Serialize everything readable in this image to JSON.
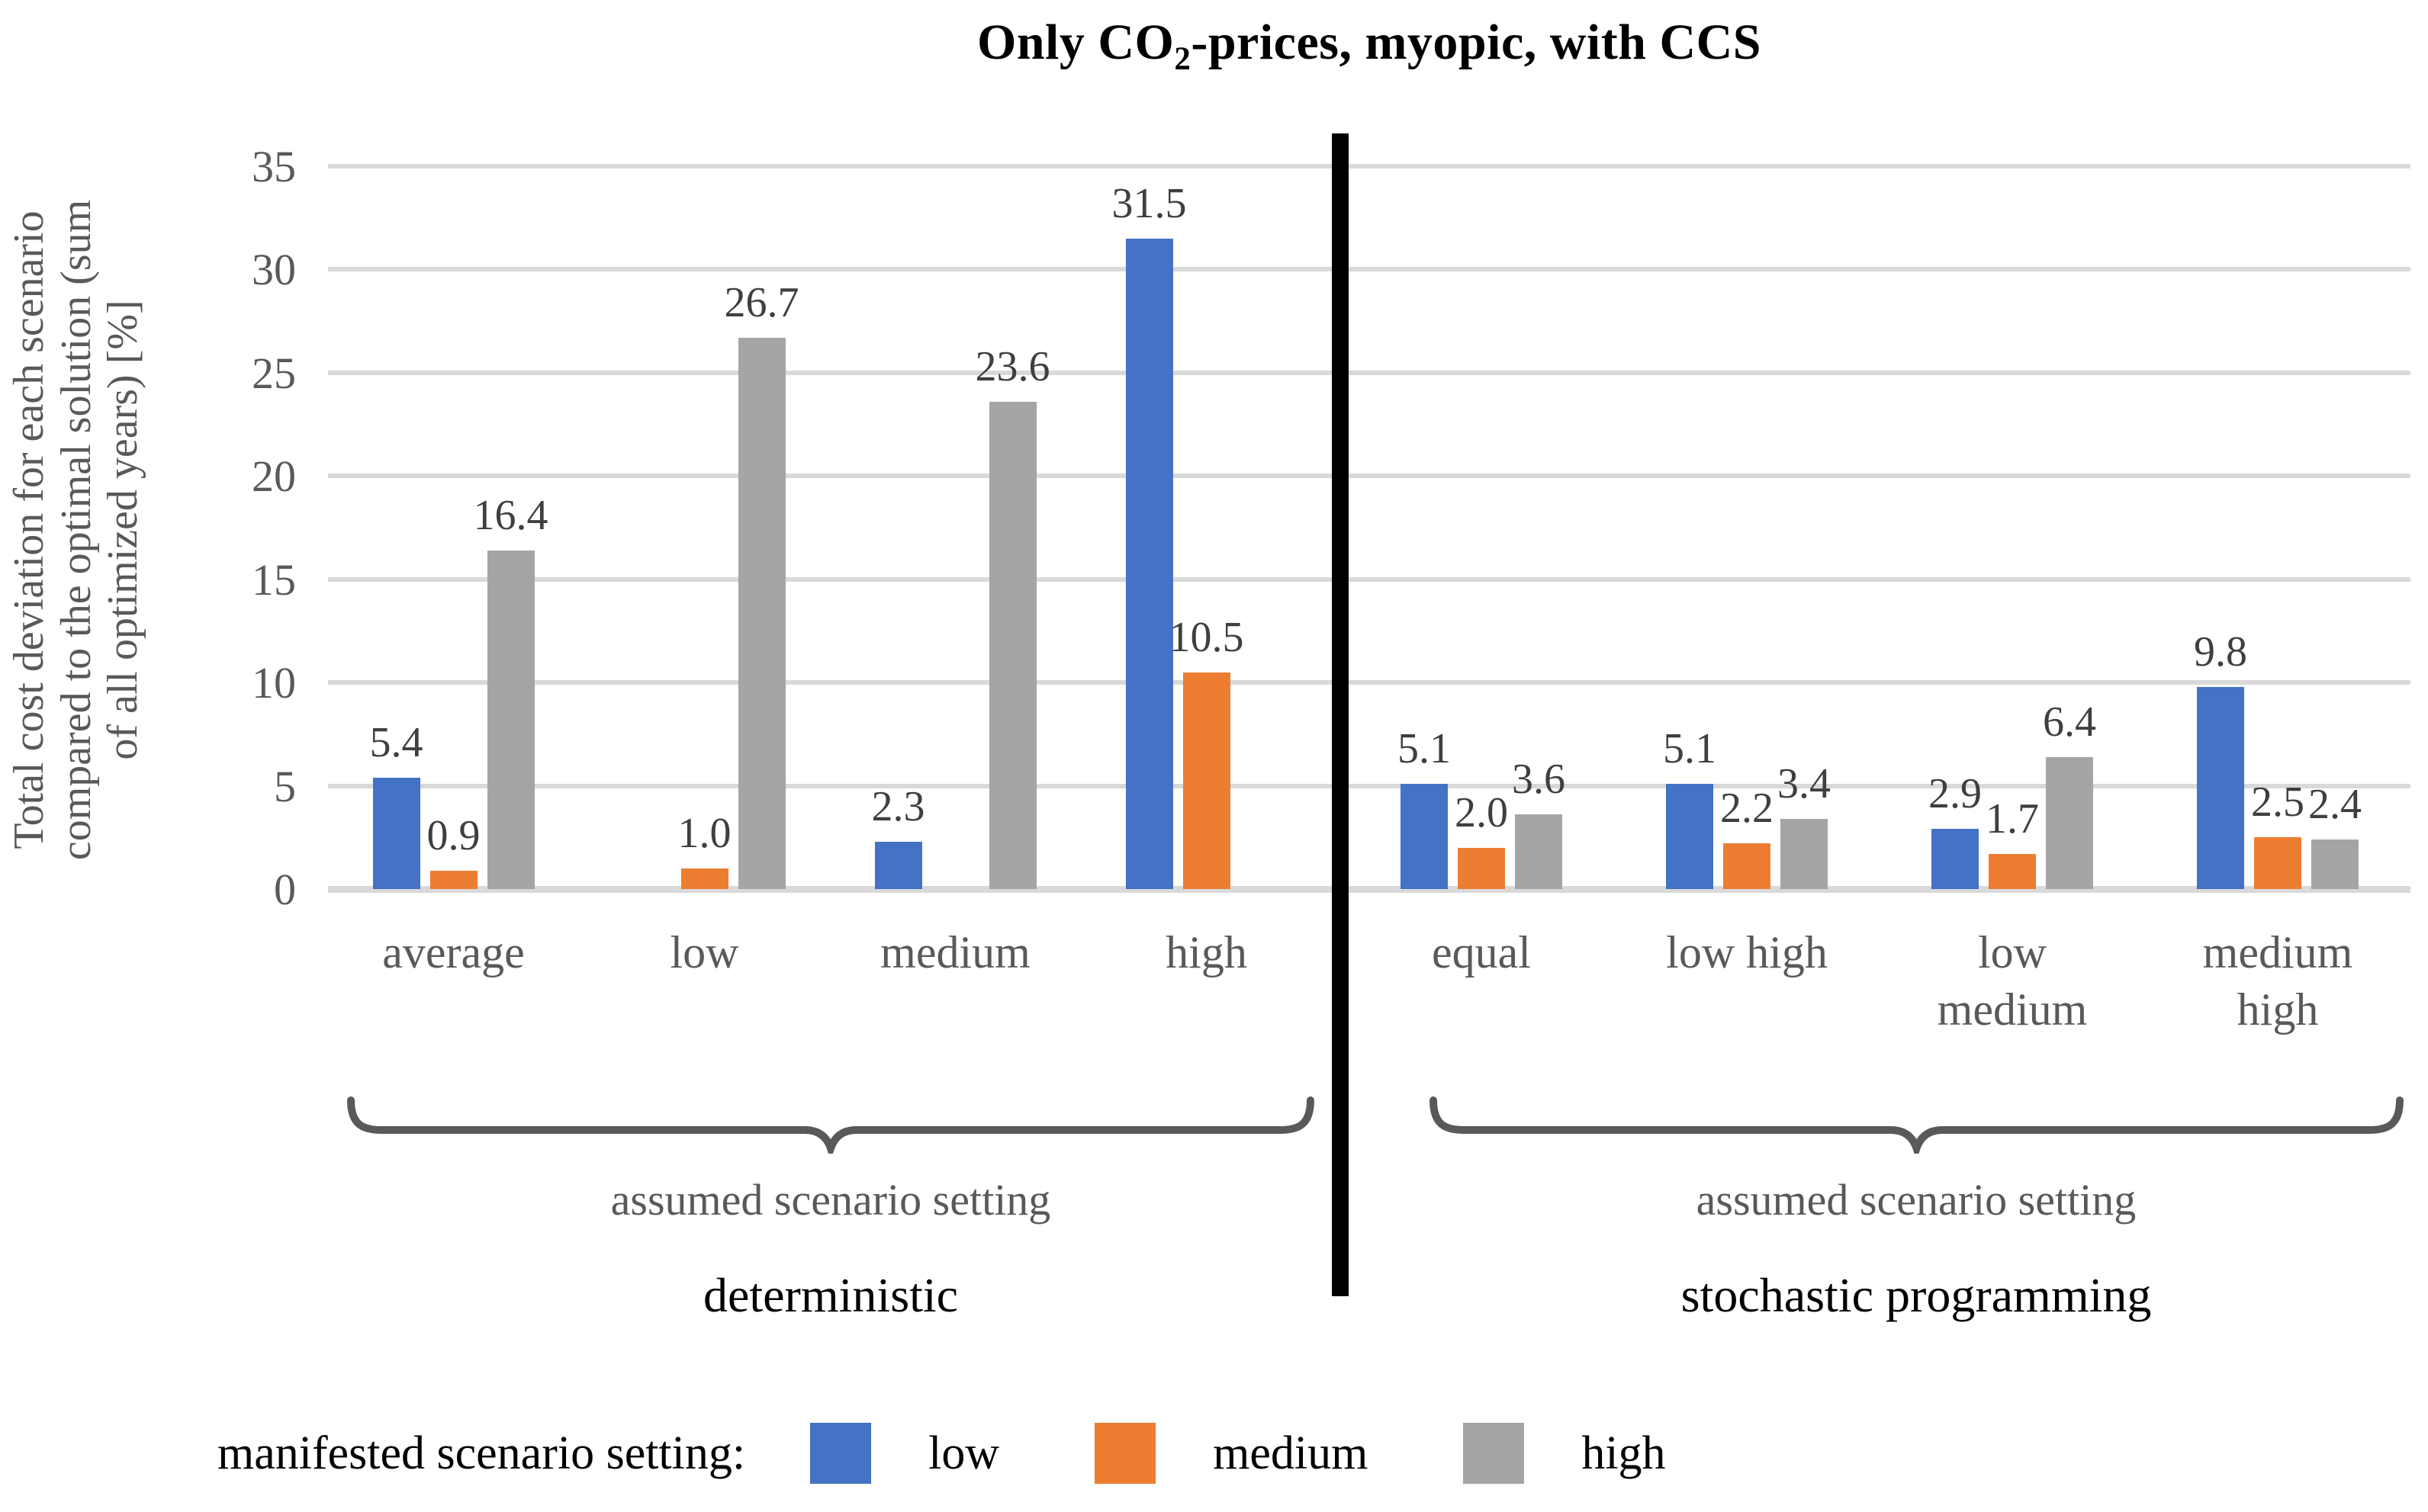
{
  "title": {
    "pre": "Only CO",
    "sub": "2",
    "post": "-prices, myopic, with CCS"
  },
  "y_axis": {
    "label_text": "Total cost deviation for each scenario\ncompared to the optimal solution (sum\nof all optimized years) [%]",
    "ticks": [
      "0",
      "5",
      "10",
      "15",
      "20",
      "25",
      "30",
      "35"
    ]
  },
  "legend": {
    "title": "manifested scenario setting:",
    "items": [
      {
        "label": "low",
        "color": "#4472C4"
      },
      {
        "label": "medium",
        "color": "#ED7D31"
      },
      {
        "label": "high",
        "color": "#A5A5A5"
      }
    ]
  },
  "sections": [
    {
      "name": "deterministic",
      "bracket_label": "assumed scenario setting"
    },
    {
      "name": "stochastic programming",
      "bracket_label": "assumed scenario setting"
    }
  ],
  "colors": {
    "grid": "#D9D9D9",
    "axis_text": "#595959",
    "data_label": "#3F3F3F",
    "divider": "#000000",
    "bracket": "#595959"
  },
  "chart_data": {
    "type": "bar",
    "title": "Only CO2-prices, myopic, with CCS",
    "ylabel": "Total cost deviation for each scenario compared to the optimal solution (sum of all optimized years) [%]",
    "xlabel": "",
    "ylim": [
      0,
      35
    ],
    "yticks": [
      0,
      5,
      10,
      15,
      20,
      25,
      30,
      35
    ],
    "grid": true,
    "legend_position": "bottom",
    "legend_title": "manifested scenario setting:",
    "categories": [
      "average",
      "low",
      "medium",
      "high",
      "equal",
      "low high",
      "low\nmedium",
      "medium\nhigh"
    ],
    "category_sections": [
      "deterministic",
      "deterministic",
      "deterministic",
      "deterministic",
      "stochastic programming",
      "stochastic programming",
      "stochastic programming",
      "stochastic programming"
    ],
    "section_bracket_labels": [
      "assumed scenario setting",
      "assumed scenario setting"
    ],
    "bar_value_labels_shown": true,
    "series": [
      {
        "name": "low",
        "color": "#4472C4",
        "values": [
          5.4,
          null,
          2.3,
          31.5,
          5.1,
          5.1,
          2.9,
          9.8
        ]
      },
      {
        "name": "medium",
        "color": "#ED7D31",
        "values": [
          0.9,
          1.0,
          null,
          10.5,
          2.0,
          2.2,
          1.7,
          2.5
        ]
      },
      {
        "name": "high",
        "color": "#A5A5A5",
        "values": [
          16.4,
          26.7,
          23.6,
          null,
          3.6,
          3.4,
          6.4,
          2.4
        ]
      }
    ]
  }
}
